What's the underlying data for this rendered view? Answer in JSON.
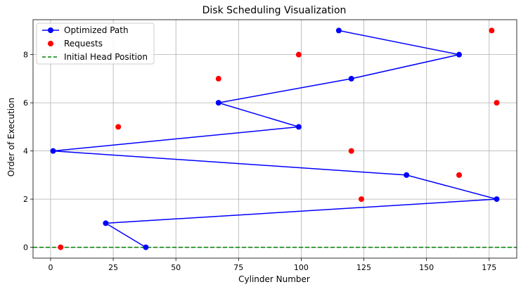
{
  "chart_data": {
    "type": "line",
    "title": "Disk Scheduling Visualization",
    "xlabel": "Cylinder Number",
    "ylabel": "Order of Execution",
    "xlim": [
      -7,
      186
    ],
    "ylim": [
      -0.45,
      9.45
    ],
    "xticks": [
      0,
      25,
      50,
      75,
      100,
      125,
      150,
      175
    ],
    "yticks": [
      0,
      2,
      4,
      6,
      8
    ],
    "grid": true,
    "legend_position": "top-left",
    "series": [
      {
        "name": "Optimized Path",
        "kind": "line",
        "color": "#0000ff",
        "x": [
          38,
          22,
          178,
          142,
          1,
          99,
          67,
          120,
          163,
          115
        ],
        "y": [
          0,
          1,
          2,
          3,
          4,
          5,
          6,
          7,
          8,
          9
        ]
      },
      {
        "name": "Requests",
        "kind": "scatter",
        "color": "#ff0000",
        "x": [
          4,
          124,
          163,
          120,
          27,
          178,
          67,
          99,
          176
        ],
        "y": [
          0,
          2,
          3,
          4,
          5,
          6,
          7,
          8,
          9
        ]
      },
      {
        "name": "Initial Head Position",
        "kind": "hline",
        "color": "#008000",
        "y": 0
      }
    ]
  }
}
